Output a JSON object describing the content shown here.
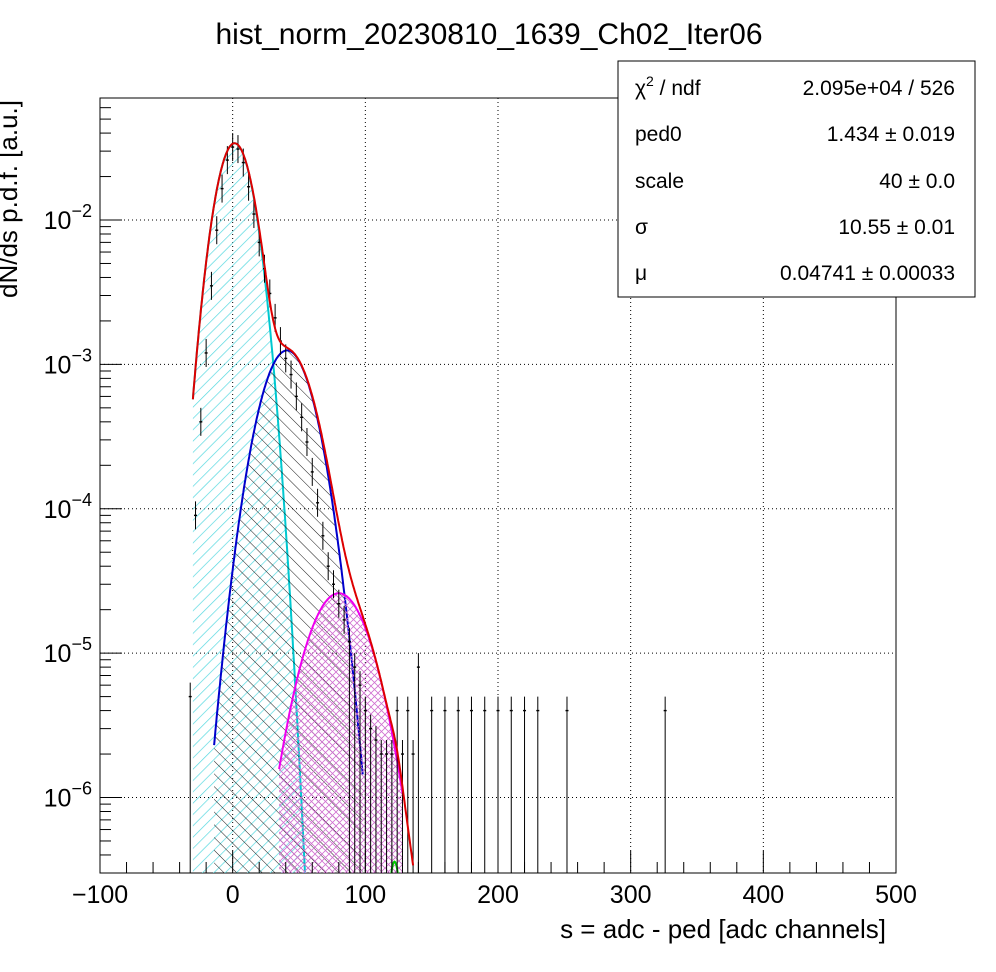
{
  "chart_data": {
    "type": "histogram-fit",
    "title": "hist_norm_20230810_1639_Ch02_Iter06",
    "xlabel": "s = adc - ped [adc channels]",
    "ylabel": "dN/ds p.d.f. [a.u.]",
    "xlim": [
      -100,
      500
    ],
    "ylim": [
      3e-07,
      0.07
    ],
    "y_scale": "log",
    "grid": true,
    "x_ticks": [
      -100,
      0,
      100,
      200,
      300,
      400,
      500
    ],
    "x_tick_labels": [
      "−100",
      "0",
      "100",
      "200",
      "300",
      "400",
      "500"
    ],
    "y_ticks": [
      {
        "value": 1e-06,
        "base": "10",
        "exp": "−6"
      },
      {
        "value": 1e-05,
        "base": "10",
        "exp": "−5"
      },
      {
        "value": 0.0001,
        "base": "10",
        "exp": "−4"
      },
      {
        "value": 0.001,
        "base": "10",
        "exp": "−3"
      },
      {
        "value": 0.01,
        "base": "10",
        "exp": "−2"
      }
    ],
    "stats_box": {
      "position": "top-right",
      "rows": [
        {
          "label_main": "χ",
          "label_sup": "2",
          "label_rest": " / ndf",
          "value": "2.095e+04 / 526"
        },
        {
          "label_main": "ped0",
          "label_sup": "",
          "label_rest": "",
          "value": "1.434 ± 0.019"
        },
        {
          "label_main": "scale",
          "label_sup": "",
          "label_rest": "",
          "value": "40 ± 0.0"
        },
        {
          "label_main": "σ",
          "label_sup": "",
          "label_rest": "",
          "value": "10.55 ± 0.01"
        },
        {
          "label_main": "μ",
          "label_sup": "",
          "label_rest": "",
          "value": "0.04741 ± 0.00033"
        }
      ]
    },
    "data_points": {
      "x": [
        -32,
        -28,
        -24,
        -20,
        -16,
        -12,
        -8,
        -4,
        0,
        4,
        8,
        12,
        16,
        20,
        24,
        28,
        32,
        36,
        40,
        44,
        48,
        52,
        56,
        60,
        64,
        68,
        72,
        76,
        80,
        84,
        88,
        92,
        96,
        100,
        104,
        108,
        112,
        116,
        120,
        124,
        128,
        132,
        136,
        140,
        150,
        160,
        170,
        180,
        190,
        200,
        210,
        220,
        230,
        252,
        326
      ],
      "y": [
        5e-06,
        9e-05,
        0.0004,
        0.0012,
        0.0035,
        0.0085,
        0.0165,
        0.026,
        0.032,
        0.031,
        0.025,
        0.017,
        0.011,
        0.007,
        0.0046,
        0.0031,
        0.0021,
        0.00145,
        0.0011,
        0.00085,
        0.0006,
        0.00043,
        0.00029,
        0.00018,
        0.00011,
        6.5e-05,
        4e-05,
        3e-05,
        2.2e-05,
        1.7e-05,
        1.2e-05,
        8e-06,
        6e-06,
        4e-06,
        3e-06,
        2.5e-06,
        2e-06,
        2e-06,
        2e-06,
        4e-06,
        2e-06,
        4e-06,
        2e-06,
        8e-06,
        4e-06,
        4e-06,
        4e-06,
        4e-06,
        4e-06,
        4e-06,
        4e-06,
        4e-06,
        4e-06,
        4e-06,
        4e-06
      ]
    },
    "components": [
      {
        "color": "#00c8d0",
        "hatch": "diag-right",
        "hatch_color": "#56d8e0",
        "mu": 1.434,
        "sigma": 11.0,
        "peak": 0.034,
        "x_range": [
          -30,
          55
        ]
      },
      {
        "color": "#0000cc",
        "hatch": "diag-left",
        "hatch_color": "#000000",
        "mu": 41.0,
        "sigma": 15.5,
        "peak": 0.00125,
        "x_range": [
          -14,
          98
        ]
      },
      {
        "color": "#ee00ee",
        "hatch": "cross",
        "hatch_color": "#d070d0",
        "mu": 80.0,
        "sigma": 19.0,
        "peak": 2.6e-05,
        "x_range": [
          35,
          128
        ]
      },
      {
        "color": "#00cc00",
        "hatch": "none",
        "hatch_color": "#00cc00",
        "mu": 122.0,
        "sigma": 4.0,
        "peak": 3.6e-07,
        "x_range": [
          114,
          130
        ]
      }
    ],
    "total_fit_color": "#dd0000",
    "total_fit_x_range": [
      -30,
      136
    ]
  }
}
